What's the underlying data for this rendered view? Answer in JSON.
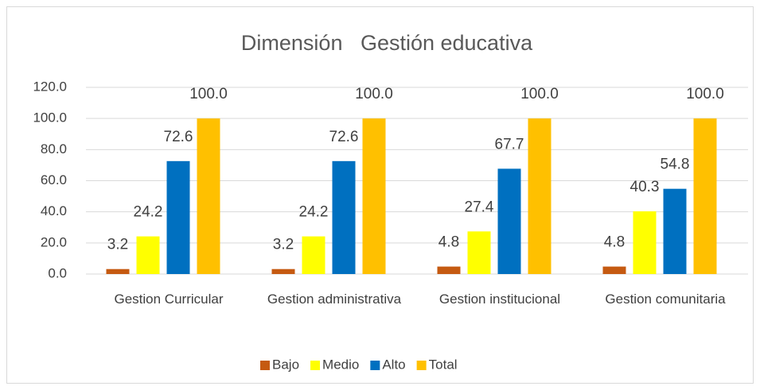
{
  "chart_data": {
    "type": "bar",
    "title": "Dimensión   Gestión educativa",
    "categories": [
      "Gestion Curricular",
      "Gestion administrativa",
      "Gestion institucional",
      "Gestion comunitaria"
    ],
    "series": [
      {
        "name": "Bajo",
        "color": "#c55a11",
        "values": [
          3.2,
          3.2,
          4.8,
          4.8
        ]
      },
      {
        "name": "Medio",
        "color": "#ffff00",
        "values": [
          24.2,
          24.2,
          27.4,
          40.3
        ]
      },
      {
        "name": "Alto",
        "color": "#0070c0",
        "values": [
          72.6,
          72.6,
          67.7,
          54.8
        ]
      },
      {
        "name": "Total",
        "color": "#ffc000",
        "values": [
          100,
          100,
          100,
          100
        ],
        "value_labels": [
          "100.0",
          "100.0",
          "100.0",
          "100.0"
        ]
      }
    ],
    "ylim": [
      0,
      120
    ],
    "yticks": [
      {
        "value": 0,
        "label": "0.0"
      },
      {
        "value": 20,
        "label": "20.0"
      },
      {
        "value": 40,
        "label": "40.0"
      },
      {
        "value": 60,
        "label": "60.0"
      },
      {
        "value": 80,
        "label": "80.0"
      },
      {
        "value": 100,
        "label": "100.0"
      },
      {
        "value": 120,
        "label": "120.0"
      }
    ],
    "grid": true,
    "legend": "bottom"
  }
}
